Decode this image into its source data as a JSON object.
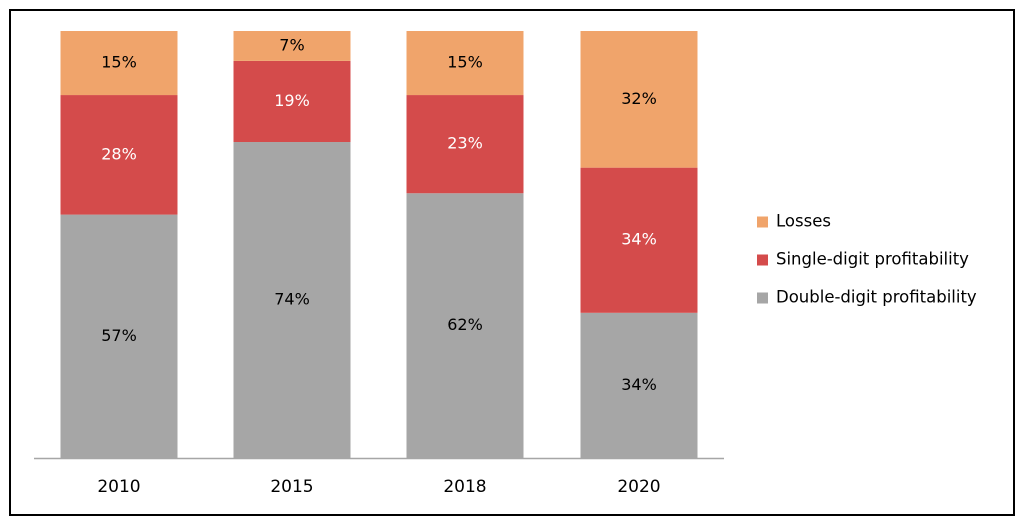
{
  "chart_data": {
    "type": "bar",
    "stacked": true,
    "orientation": "vertical",
    "categories": [
      "2010",
      "2015",
      "2018",
      "2020"
    ],
    "series": [
      {
        "name": "Double-digit profitability",
        "values": [
          57,
          74,
          62,
          34
        ],
        "labels": [
          "57%",
          "74%",
          "62%",
          "34%"
        ],
        "color": "#a6a6a6",
        "label_color": "#000000"
      },
      {
        "name": "Single-digit profitability",
        "values": [
          28,
          19,
          23,
          34
        ],
        "labels": [
          "28%",
          "19%",
          "23%",
          "34%"
        ],
        "color": "#d44b4b",
        "label_color": "#ffffff"
      },
      {
        "name": "Losses",
        "values": [
          15,
          7,
          15,
          32
        ],
        "labels": [
          "15%",
          "7%",
          "15%",
          "32%"
        ],
        "color": "#f0a46b",
        "label_color": "#000000"
      }
    ],
    "title": "",
    "xlabel": "",
    "ylabel": "",
    "ylim": [
      0,
      100
    ],
    "grid": false,
    "legend": {
      "position": "right",
      "order": [
        "Losses",
        "Single-digit profitability",
        "Double-digit profitability"
      ]
    },
    "axis_color": "#a6a6a6",
    "frame_color": "#000000"
  }
}
